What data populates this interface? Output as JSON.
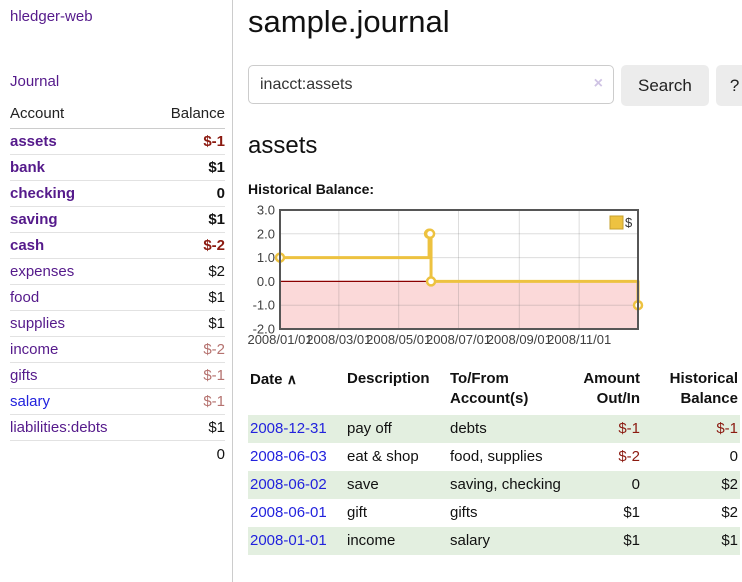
{
  "colors": {
    "accent_purple": "#551a8b",
    "link_blue": "#2222dd",
    "negative": "#8b1a10",
    "negative_soft": "#b5726f",
    "row_green": "#e3efe0",
    "series_gold": "#edc240",
    "zero_line": "#8b0000",
    "negative_region": "#fbd9d9",
    "grid_border": "#565656"
  },
  "sidebar": {
    "app_title": "hledger-web",
    "journal_link": "Journal",
    "accounts": {
      "headers": {
        "account": "Account",
        "balance": "Balance"
      },
      "rows": [
        {
          "name": "assets",
          "balance": "$-1",
          "indent": 1,
          "bold": true,
          "balance_tone": "negative"
        },
        {
          "name": "bank",
          "balance": "$1",
          "indent": 2,
          "bold": true,
          "balance_tone": "positive"
        },
        {
          "name": "checking",
          "balance": "0",
          "indent": 3,
          "bold": true,
          "balance_tone": "zero"
        },
        {
          "name": "saving",
          "balance": "$1",
          "indent": 3,
          "bold": true,
          "balance_tone": "positive"
        },
        {
          "name": "cash",
          "balance": "$-2",
          "indent": 2,
          "bold": true,
          "balance_tone": "negative"
        },
        {
          "name": "expenses",
          "balance": "$2",
          "indent": 1,
          "bold": false,
          "balance_tone": "positive"
        },
        {
          "name": "food",
          "balance": "$1",
          "indent": 2,
          "bold": false,
          "balance_tone": "positive"
        },
        {
          "name": "supplies",
          "balance": "$1",
          "indent": 2,
          "bold": false,
          "balance_tone": "positive"
        },
        {
          "name": "income",
          "balance": "$-2",
          "indent": 1,
          "bold": false,
          "balance_tone": "negative-soft"
        },
        {
          "name": "gifts",
          "balance": "$-1",
          "indent": 2,
          "bold": false,
          "balance_tone": "negative-soft"
        },
        {
          "name": "salary",
          "balance": "$-1",
          "indent": 2,
          "bold": false,
          "balance_tone": "negative-soft",
          "link_tone": "blue"
        },
        {
          "name": "liabilities:debts",
          "balance": "$1",
          "indent": 1,
          "bold": false,
          "balance_tone": "positive"
        }
      ],
      "total": "0"
    }
  },
  "main": {
    "title": "sample.journal",
    "search": {
      "value": "inacct:assets",
      "clear_icon": "×",
      "search_button": "Search",
      "help_button": "?"
    },
    "account_heading": "assets",
    "chart_label": "Historical Balance:",
    "chart_data": {
      "type": "line",
      "title": "Historical Balance:",
      "legend": [
        {
          "label": "$",
          "color": "#edc240"
        }
      ],
      "legend_position": "top-right",
      "line_style": "step",
      "series": [
        {
          "name": "$",
          "points": [
            [
              "2008-01-01",
              1
            ],
            [
              "2008-06-01",
              2
            ],
            [
              "2008-06-02",
              2
            ],
            [
              "2008-06-03",
              0
            ],
            [
              "2008-12-31",
              -1
            ]
          ]
        }
      ],
      "x_ticks": [
        "2008/01/01",
        "2008/03/01",
        "2008/05/01",
        "2008/07/01",
        "2008/09/01",
        "2008/11/01"
      ],
      "y_ticks": [
        3.0,
        2.0,
        1.0,
        0.0,
        -1.0,
        -2.0
      ],
      "ylim": [
        -2,
        3
      ],
      "grid": true,
      "negative_region": true
    },
    "register": {
      "headers": {
        "date": "Date",
        "sort_arrow": "∧",
        "description": "Description",
        "accounts": "To/From Account(s)",
        "amount": "Amount Out/In",
        "balance": "Historical Balance"
      },
      "rows": [
        {
          "date": "2008-12-31",
          "description": "pay off",
          "accounts": "debts",
          "amount": "$-1",
          "amount_tone": "negative",
          "balance": "$-1",
          "balance_tone": "negative",
          "green": true
        },
        {
          "date": "2008-06-03",
          "description": "eat & shop",
          "accounts": "food, supplies",
          "amount": "$-2",
          "amount_tone": "negative",
          "balance": "0",
          "balance_tone": "zero",
          "green": false
        },
        {
          "date": "2008-06-02",
          "description": "save",
          "accounts": "saving, checking",
          "amount": "0",
          "amount_tone": "zero",
          "balance": "$2",
          "balance_tone": "positive",
          "green": true
        },
        {
          "date": "2008-06-01",
          "description": "gift",
          "accounts": "gifts",
          "amount": "$1",
          "amount_tone": "positive",
          "balance": "$2",
          "balance_tone": "positive",
          "green": false
        },
        {
          "date": "2008-01-01",
          "description": "income",
          "accounts": "salary",
          "amount": "$1",
          "amount_tone": "positive",
          "balance": "$1",
          "balance_tone": "positive",
          "green": true
        }
      ]
    }
  }
}
